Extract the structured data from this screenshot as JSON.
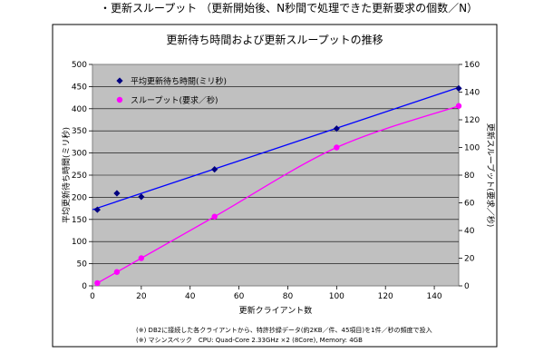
{
  "page": {
    "heading": "・更新スループット （更新開始後、N秒間で処理できた更新要求の個数／N）",
    "notes": [
      "(※) DB2に接続した各クライアントから、特許抄録データ(約2KB／件、45項目)を1件／秒の頻度で投入",
      "(※) マシンスペック　CPU: Quad-Core 2.33GHz ×2 (8Core), Memory: 4GB"
    ]
  },
  "chart_data": {
    "type": "scatter",
    "title": "更新待ち時間および更新スループットの推移",
    "xlabel": "更新クライアント数",
    "ylabel": "平均更新待ち時間(ミリ秒)",
    "y2label": "更新スループット(要求／秒)",
    "xlim": [
      0,
      150
    ],
    "ylim": [
      0,
      500
    ],
    "y2lim": [
      0,
      160
    ],
    "xticks": [
      0,
      20,
      40,
      60,
      80,
      100,
      120,
      140
    ],
    "yticks": [
      0,
      50,
      100,
      150,
      200,
      250,
      300,
      350,
      400,
      450,
      500
    ],
    "y2ticks": [
      0,
      20,
      40,
      60,
      80,
      100,
      120,
      140,
      160
    ],
    "grid": true,
    "legend_position": "top-left",
    "series": [
      {
        "name": "平均更新待ち時間(ミリ秒)",
        "axis": "left",
        "marker": "diamond",
        "color": "#000080",
        "line_color": "#0000ff",
        "x": [
          2,
          10,
          20,
          50,
          100,
          150
        ],
        "y": [
          172,
          209,
          201,
          263,
          355,
          446
        ],
        "trend": {
          "type": "linear",
          "from": [
            0,
            172
          ],
          "to": [
            150,
            448
          ]
        }
      },
      {
        "name": "スループット(要求／秒)",
        "axis": "right",
        "marker": "circle",
        "color": "#ff00ff",
        "line_color": "#ff00ff",
        "x": [
          2,
          10,
          20,
          50,
          100,
          150
        ],
        "y": [
          2,
          10,
          20,
          50,
          100,
          130
        ],
        "trend": {
          "type": "smooth"
        }
      }
    ]
  }
}
